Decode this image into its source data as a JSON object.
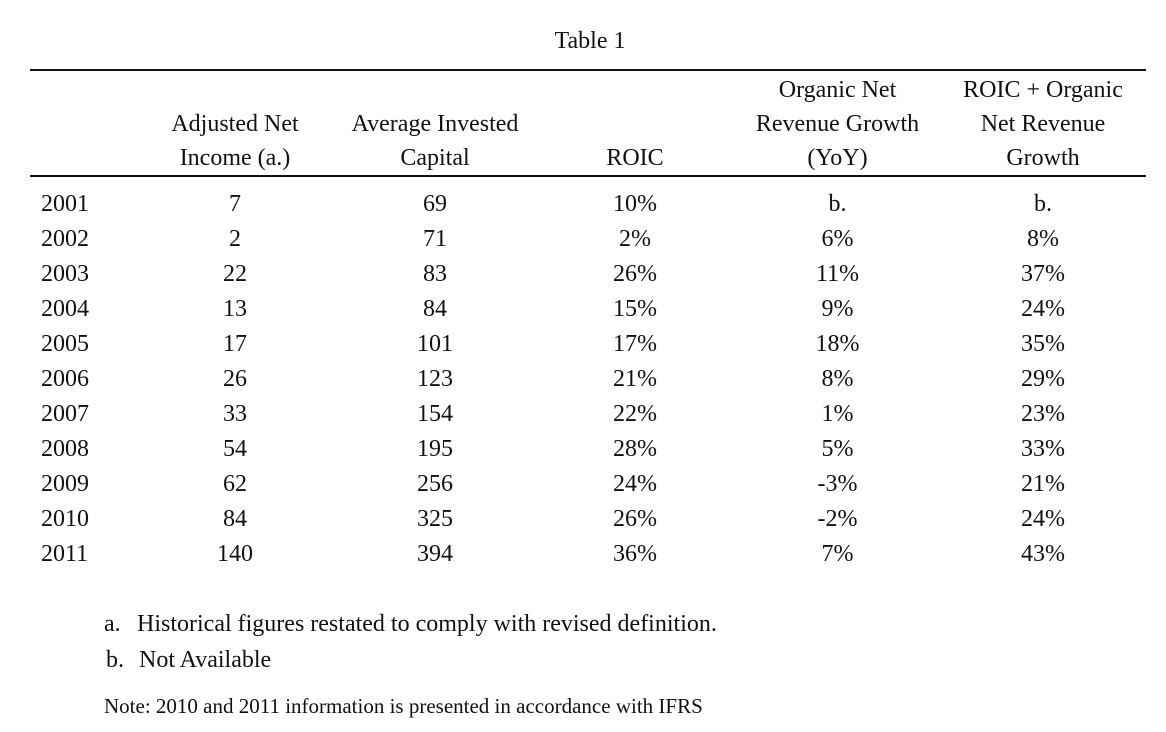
{
  "title": "Table 1",
  "table": {
    "headers": [
      [
        ""
      ],
      [
        "Adjusted Net",
        "Income (a.)"
      ],
      [
        "Average Invested",
        "Capital"
      ],
      [
        "ROIC"
      ],
      [
        "Organic Net",
        "Revenue Growth",
        "(YoY)"
      ],
      [
        "ROIC + Organic",
        "Net Revenue",
        "Growth"
      ]
    ],
    "rows": [
      [
        "2001",
        "7",
        "69",
        "10%",
        "b.",
        "b."
      ],
      [
        "2002",
        "2",
        "71",
        "2%",
        "6%",
        "8%"
      ],
      [
        "2003",
        "22",
        "83",
        "26%",
        "11%",
        "37%"
      ],
      [
        "2004",
        "13",
        "84",
        "15%",
        "9%",
        "24%"
      ],
      [
        "2005",
        "17",
        "101",
        "17%",
        "18%",
        "35%"
      ],
      [
        "2006",
        "26",
        "123",
        "21%",
        "8%",
        "29%"
      ],
      [
        "2007",
        "33",
        "154",
        "22%",
        "1%",
        "23%"
      ],
      [
        "2008",
        "54",
        "195",
        "28%",
        "5%",
        "33%"
      ],
      [
        "2009",
        "62",
        "256",
        "24%",
        "-3%",
        "21%"
      ],
      [
        "2010",
        "84",
        "325",
        "26%",
        "-2%",
        "24%"
      ],
      [
        "2011",
        "140",
        "394",
        "36%",
        "7%",
        "43%"
      ]
    ]
  },
  "footnotes": [
    {
      "marker": "a.",
      "text": "Historical figures restated to comply with revised definition."
    },
    {
      "marker": "b.",
      "text": "Not Available"
    }
  ],
  "note": "Note: 2010 and 2011 information is presented in accordance with IFRS"
}
